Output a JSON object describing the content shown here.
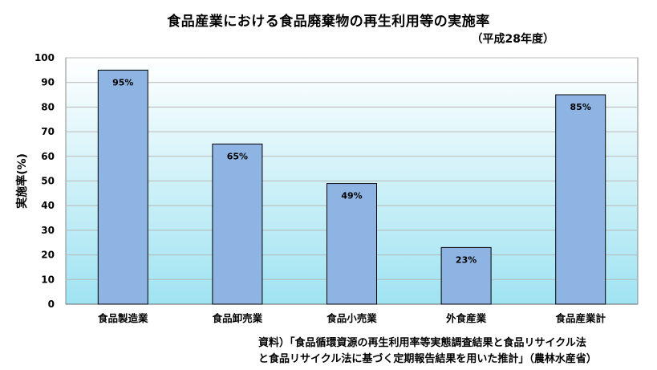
{
  "chart_data": {
    "type": "bar",
    "title": "食品産業における食品廃棄物の再生利用等の実施率",
    "subtitle": "（平成28年度）",
    "ylabel": "実施率(%)",
    "categories": [
      "食品製造業",
      "食品卸売業",
      "食品小売業",
      "外食産業",
      "食品産業計"
    ],
    "values": [
      95,
      65,
      49,
      23,
      85
    ],
    "data_labels": [
      "95%",
      "65%",
      "49%",
      "23%",
      "85%"
    ],
    "ylim": [
      0,
      100
    ],
    "yticks": [
      0,
      10,
      20,
      30,
      40,
      50,
      60,
      70,
      80,
      90,
      100
    ],
    "grid": true,
    "colors": {
      "bar_fill": "#8eb4e3",
      "bar_stroke": "#000000",
      "plot_top": "#ffffff",
      "plot_bottom": "#9fe3f2",
      "grid": "#b8b8b8"
    }
  },
  "source": {
    "line1": "資料）「食品循環資源の再生利用率等実態調査結果と食品リサイクル法",
    "line2": "と食品リサイクル法に基づく定期報告結果を用いた推計」（農林水産省）"
  }
}
